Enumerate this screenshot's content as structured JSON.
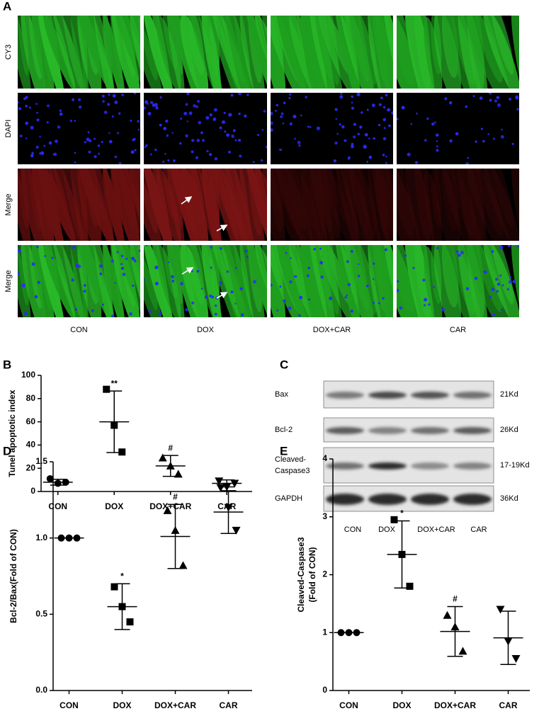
{
  "figure": {
    "panel_a": {
      "label": "A",
      "rows": [
        "CY3",
        "DAPI",
        "Merge",
        "Merge"
      ],
      "columns": [
        "CON",
        "DOX",
        "DOX+CAR",
        "CAR"
      ]
    },
    "panel_c": {
      "label": "C",
      "proteins": [
        {
          "name": [
            "Bax"
          ],
          "size": "21Kd"
        },
        {
          "name": [
            "Bcl-2"
          ],
          "size": "26Kd"
        },
        {
          "name": [
            "Cleaved-",
            "Caspase3"
          ],
          "size": "17-19Kd"
        },
        {
          "name": [
            "GAPDH"
          ],
          "size": "36Kd"
        }
      ],
      "columns": [
        "CON",
        "DOX",
        "DOX+CAR",
        "CAR"
      ]
    }
  },
  "chart_data": [
    {
      "type": "dotplot",
      "panel": "B",
      "ylabel": [
        "Tunel apoptotic index"
      ],
      "categories": [
        "CON",
        "DOX",
        "DOX+CAR",
        "CAR"
      ],
      "points": [
        [
          11,
          7,
          8
        ],
        [
          88,
          57,
          34
        ],
        [
          29,
          22,
          15
        ],
        [
          9,
          4,
          7
        ]
      ],
      "means": [
        8,
        60,
        22,
        7
      ],
      "sds": [
        2.5,
        26.5,
        9,
        3
      ],
      "annotations": [
        null,
        "**",
        "#",
        null
      ],
      "markers": [
        "circle",
        "square",
        "triangle-up",
        "triangle-down"
      ],
      "color": "#000000",
      "ylim": [
        0,
        100
      ],
      "yticks": [
        0,
        20,
        40,
        60,
        80,
        100
      ]
    },
    {
      "type": "dotplot",
      "panel": "D",
      "ylabel": [
        "Bcl-2/Bax(Fold of CON)"
      ],
      "categories": [
        "CON",
        "DOX",
        "DOX+CAR",
        "CAR"
      ],
      "points": [
        [
          1,
          1,
          1
        ],
        [
          0.68,
          0.55,
          0.45
        ],
        [
          1.18,
          1.05,
          0.82
        ],
        [
          1.33,
          1.2,
          1.05
        ]
      ],
      "means": [
        1,
        0.55,
        1.01,
        1.17
      ],
      "sds": [
        0,
        0.15,
        0.21,
        0.14
      ],
      "annotations": [
        null,
        "*",
        "#",
        null
      ],
      "markers": [
        "circle",
        "square",
        "triangle-up",
        "triangle-down"
      ],
      "color": "#000000",
      "ylim": [
        0,
        1.5
      ],
      "yticks": [
        {
          "value": 0,
          "label": "0.0"
        },
        0.5,
        {
          "value": 1,
          "label": "1.0"
        },
        1.5
      ]
    },
    {
      "type": "dotplot",
      "panel": "E",
      "ylabel": [
        "Cleaved-Caspase3",
        "(Fold of CON)"
      ],
      "categories": [
        "CON",
        "DOX",
        "DOX+CAR",
        "CAR"
      ],
      "points": [
        [
          1,
          1,
          1
        ],
        [
          2.95,
          2.35,
          1.8
        ],
        [
          1.3,
          1.1,
          0.68
        ],
        [
          1.4,
          0.85,
          0.55
        ]
      ],
      "means": [
        1,
        2.35,
        1.02,
        0.91
      ],
      "sds": [
        0,
        0.58,
        0.43,
        0.46
      ],
      "annotations": [
        null,
        "*",
        "#",
        null
      ],
      "markers": [
        "circle",
        "square",
        "triangle-up",
        "triangle-down"
      ],
      "color": "#000000",
      "ylim": [
        0,
        4
      ],
      "yticks": [
        0,
        1,
        2,
        3,
        4
      ]
    }
  ]
}
